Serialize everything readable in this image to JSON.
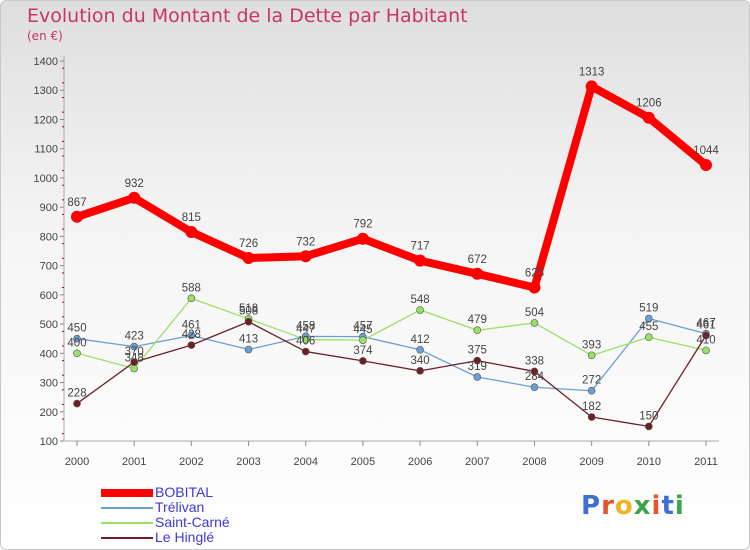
{
  "title": "Evolution du Montant de la Dette par Habitant",
  "subtitle": "(en €)",
  "brand": {
    "text": "Proxiti",
    "letter_colors": [
      "#3f6fd0",
      "#e8532c",
      "#f0b323",
      "#3aa44a",
      "#e8532c",
      "#3f6fd0",
      "#3aa44a"
    ]
  },
  "chart_data": {
    "type": "line",
    "categories": [
      "2000",
      "2001",
      "2002",
      "2003",
      "2004",
      "2005",
      "2006",
      "2007",
      "2008",
      "2009",
      "2010",
      "2011"
    ],
    "yticks": [
      "100",
      "200",
      "300",
      "400",
      "500",
      "600",
      "700",
      "800",
      "900",
      "1000",
      "1100",
      "1200",
      "1300",
      "1400"
    ],
    "ylim": [
      100,
      1400
    ],
    "grid": false,
    "legend_position": "bottom-left",
    "series": [
      {
        "name": "BOBITAL",
        "color": "#ff0000",
        "values": [
          867,
          932,
          815,
          726,
          732,
          792,
          717,
          672,
          625,
          1313,
          1206,
          1044
        ]
      },
      {
        "name": "Trélivan",
        "color": "#6b9fd3",
        "values": [
          450,
          423,
          461,
          413,
          458,
          457,
          412,
          319,
          284,
          272,
          519,
          467
        ]
      },
      {
        "name": "Saint-Carné",
        "color": "#99e066",
        "values": [
          400,
          348,
          588,
          518,
          447,
          445,
          548,
          479,
          504,
          393,
          455,
          410
        ]
      },
      {
        "name": "Le Hinglé",
        "color": "#6e1f26",
        "values": [
          228,
          370,
          428,
          508,
          406,
          374,
          340,
          375,
          338,
          182,
          150,
          461
        ]
      }
    ]
  }
}
